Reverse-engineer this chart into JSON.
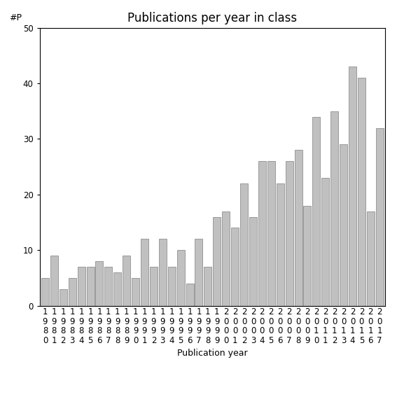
{
  "title": "Publications per year in class",
  "xlabel": "Publication year",
  "ylabel": "#P",
  "years": [
    1980,
    1981,
    1982,
    1983,
    1984,
    1985,
    1986,
    1987,
    1988,
    1989,
    1990,
    1991,
    1992,
    1993,
    1994,
    1995,
    1996,
    1997,
    1998,
    1999,
    2000,
    2001,
    2002,
    2003,
    2004,
    2005,
    2006,
    2007,
    2008,
    2009,
    2010,
    2011,
    2012,
    2013,
    2014,
    2015,
    2016,
    2017
  ],
  "values": [
    5,
    9,
    3,
    5,
    7,
    7,
    8,
    7,
    6,
    9,
    5,
    12,
    7,
    12,
    7,
    10,
    4,
    12,
    7,
    16,
    17,
    14,
    22,
    16,
    26,
    26,
    22,
    26,
    28,
    18,
    34,
    23,
    35,
    29,
    43,
    41,
    17,
    32
  ],
  "bar_color": "#c0c0c0",
  "bar_edgecolor": "#808080",
  "ylim": [
    0,
    50
  ],
  "yticks": [
    0,
    10,
    20,
    30,
    40,
    50
  ],
  "background_color": "#ffffff",
  "title_fontsize": 12,
  "axis_label_fontsize": 9,
  "tick_fontsize": 8.5
}
